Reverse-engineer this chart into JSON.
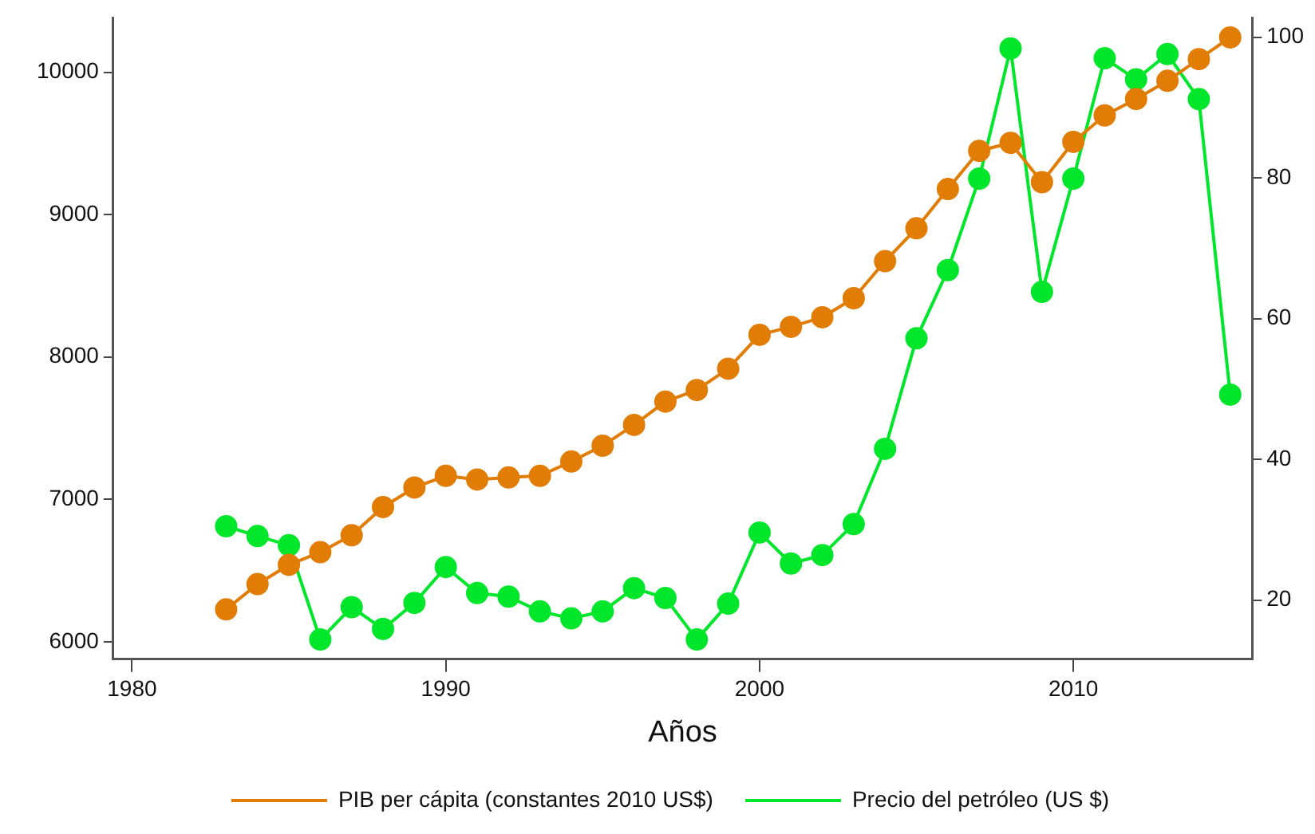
{
  "chart_data": {
    "type": "line",
    "xlabel": "Años",
    "x": [
      1983,
      1984,
      1985,
      1986,
      1987,
      1988,
      1989,
      1990,
      1991,
      1992,
      1993,
      1994,
      1995,
      1996,
      1997,
      1998,
      1999,
      2000,
      2001,
      2002,
      2003,
      2004,
      2005,
      2006,
      2007,
      2008,
      2009,
      2010,
      2011,
      2012,
      2013,
      2014,
      2015
    ],
    "series": [
      {
        "name": "PIB per cápita (constantes 2010 US$)",
        "color": "#e17c05",
        "values": [
          6227,
          6405,
          6540,
          6629,
          6748,
          6946,
          7083,
          7165,
          7139,
          7154,
          7165,
          7266,
          7377,
          7523,
          7687,
          7768,
          7918,
          8156,
          8212,
          8279,
          8413,
          8673,
          8904,
          9180,
          9448,
          9504,
          9228,
          9511,
          9697,
          9812,
          9940,
          10092,
          10245
        ]
      },
      {
        "name": "Precio del petróleo (US $)",
        "color": "#00e62a",
        "axis": "y2",
        "values": [
          30.5,
          29.1,
          27.8,
          14.4,
          19.0,
          15.9,
          19.6,
          24.7,
          21.0,
          20.5,
          18.4,
          17.4,
          18.4,
          21.7,
          20.3,
          14.4,
          19.5,
          29.6,
          25.2,
          26.4,
          30.8,
          41.5,
          57.2,
          66.9,
          79.9,
          98.4,
          63.8,
          79.9,
          97.0,
          94.0,
          97.6,
          91.2,
          49.2
        ]
      }
    ],
    "xlim": [
      1979.4,
      2015.7
    ],
    "xticks": [
      1980,
      1990,
      2000,
      2010
    ],
    "ylim": [
      5877,
      10380
    ],
    "yticks": [
      6000,
      7000,
      8000,
      9000,
      10000
    ],
    "y2lim": [
      11.6,
      102.7
    ],
    "y2ticks": [
      20,
      40,
      60,
      80,
      100
    ],
    "grid": false,
    "legend": "bottom",
    "marker": "circle",
    "line_style": "solid"
  }
}
